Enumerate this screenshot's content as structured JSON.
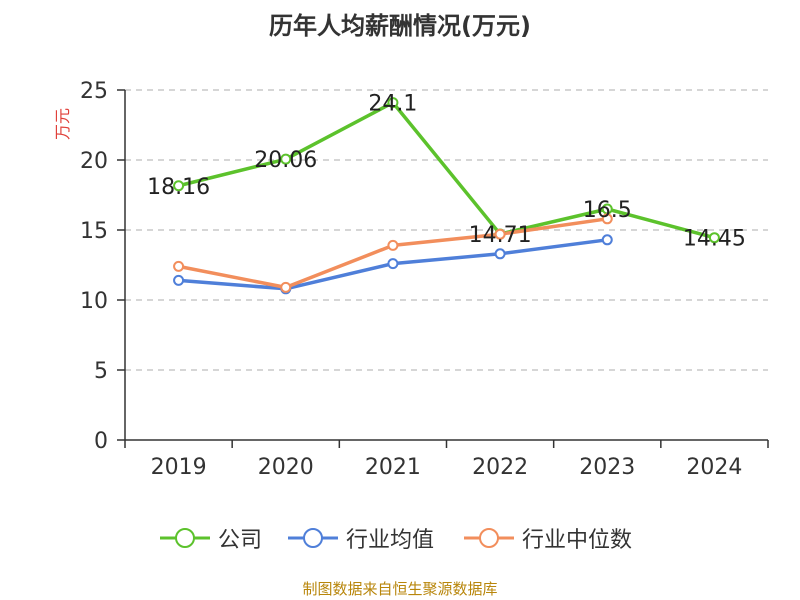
{
  "title": "历年人均薪酬情况(万元)",
  "footer": "制图数据来自恒生聚源数据库",
  "chart_data": {
    "type": "line",
    "title": "历年人均薪酬情况(万元)",
    "xlabel": "",
    "ylabel": "万元",
    "categories": [
      "2019",
      "2020",
      "2021",
      "2022",
      "2023",
      "2024"
    ],
    "ylim": [
      0,
      25
    ],
    "yticks": [
      0,
      5,
      10,
      15,
      20,
      25
    ],
    "grid": true,
    "legend_position": "bottom",
    "series": [
      {
        "name": "公司",
        "color": "#5cc22c",
        "values": [
          18.16,
          20.06,
          24.1,
          14.71,
          16.5,
          14.45
        ],
        "labels": [
          "18.16",
          "20.06",
          "24.1",
          "14.71",
          "16.5",
          "14.45"
        ]
      },
      {
        "name": "行业均值",
        "color": "#4f7fd9",
        "values": [
          11.4,
          10.8,
          12.6,
          13.3,
          14.3,
          null
        ]
      },
      {
        "name": "行业中位数",
        "color": "#f28e5c",
        "values": [
          12.4,
          10.9,
          13.9,
          14.7,
          15.8,
          null
        ]
      }
    ]
  }
}
